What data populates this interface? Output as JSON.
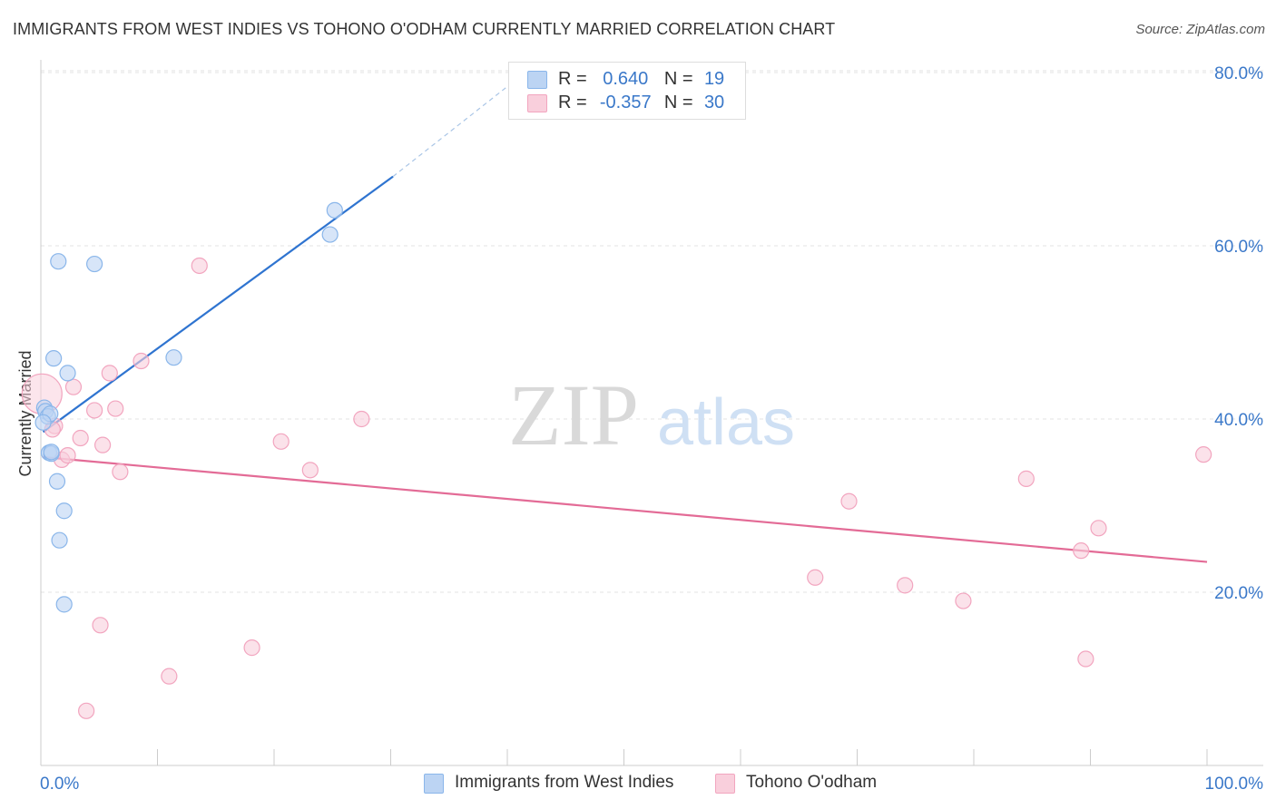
{
  "title": "IMMIGRANTS FROM WEST INDIES VS TOHONO O'ODHAM CURRENTLY MARRIED CORRELATION CHART",
  "source": "Source: ZipAtlas.com",
  "watermark": {
    "zip": "ZIP",
    "atlas": "atlas"
  },
  "legend": {
    "r_label": "R =",
    "n_label": "N =",
    "series": [
      {
        "r": "0.640",
        "n": "19"
      },
      {
        "r": "-0.357",
        "n": "30"
      }
    ]
  },
  "chart_data": {
    "type": "scatter",
    "title": "IMMIGRANTS FROM WEST INDIES VS TOHONO O'ODHAM CURRENTLY MARRIED CORRELATION CHART",
    "xlabel": "",
    "ylabel": "Currently Married",
    "xlim": [
      0,
      100
    ],
    "ylim": [
      0,
      82
    ],
    "x_tick_labels": [
      "0.0%",
      "100.0%"
    ],
    "y_ticks": [
      20,
      40,
      60,
      80
    ],
    "y_tick_labels": [
      "20.0%",
      "40.0%",
      "60.0%",
      "80.0%"
    ],
    "grid": true,
    "legend_position": "bottom-center",
    "series": [
      {
        "name": "Immigrants from West Indies",
        "color": "#8ab6ea",
        "fill": "#bcd4f3",
        "line_color": "#2f74d0",
        "r": 0.64,
        "n": 19,
        "trend": {
          "x0": 0.2,
          "y0": 38.5,
          "x1": 30.2,
          "y1": 68.0,
          "dash_to_x": 42.0,
          "dash_to_y": 80.5
        },
        "points": [
          [
            0.3,
            41.3
          ],
          [
            0.4,
            40.9
          ],
          [
            0.6,
            40.3
          ],
          [
            0.8,
            40.6
          ],
          [
            0.2,
            39.6
          ],
          [
            0.7,
            36.1
          ],
          [
            0.9,
            36.0
          ],
          [
            1.1,
            47.0
          ],
          [
            2.3,
            45.3
          ],
          [
            1.4,
            32.8
          ],
          [
            2.0,
            29.4
          ],
          [
            1.6,
            26.0
          ],
          [
            2.0,
            18.6
          ],
          [
            1.5,
            58.2
          ],
          [
            4.6,
            57.9
          ],
          [
            11.4,
            47.1
          ],
          [
            25.2,
            64.1
          ],
          [
            24.8,
            61.3
          ],
          [
            0.9,
            36.2
          ]
        ]
      },
      {
        "name": "Tohono O'odham",
        "color": "#f2a5bf",
        "fill": "#f9cfdc",
        "line_color": "#e36b96",
        "r": -0.357,
        "n": 30,
        "trend": {
          "x0": 0.2,
          "y0": 35.6,
          "x1": 100,
          "y1": 23.5
        },
        "points": [
          [
            0.1,
            42.9
          ],
          [
            1.2,
            39.2
          ],
          [
            1.8,
            35.3
          ],
          [
            2.3,
            35.8
          ],
          [
            2.8,
            43.7
          ],
          [
            3.4,
            37.8
          ],
          [
            4.6,
            41.0
          ],
          [
            5.3,
            37.0
          ],
          [
            5.9,
            45.3
          ],
          [
            6.4,
            41.2
          ],
          [
            6.8,
            33.9
          ],
          [
            8.6,
            46.7
          ],
          [
            13.6,
            57.7
          ],
          [
            20.6,
            37.4
          ],
          [
            23.1,
            34.1
          ],
          [
            27.5,
            40.0
          ],
          [
            5.1,
            16.2
          ],
          [
            3.9,
            6.3
          ],
          [
            11.0,
            10.3
          ],
          [
            18.1,
            13.6
          ],
          [
            69.3,
            30.5
          ],
          [
            66.4,
            21.7
          ],
          [
            74.1,
            20.8
          ],
          [
            79.1,
            19.0
          ],
          [
            84.5,
            33.1
          ],
          [
            89.2,
            24.8
          ],
          [
            90.7,
            27.4
          ],
          [
            89.6,
            12.3
          ],
          [
            99.7,
            35.9
          ],
          [
            1.0,
            38.8
          ]
        ]
      }
    ]
  }
}
